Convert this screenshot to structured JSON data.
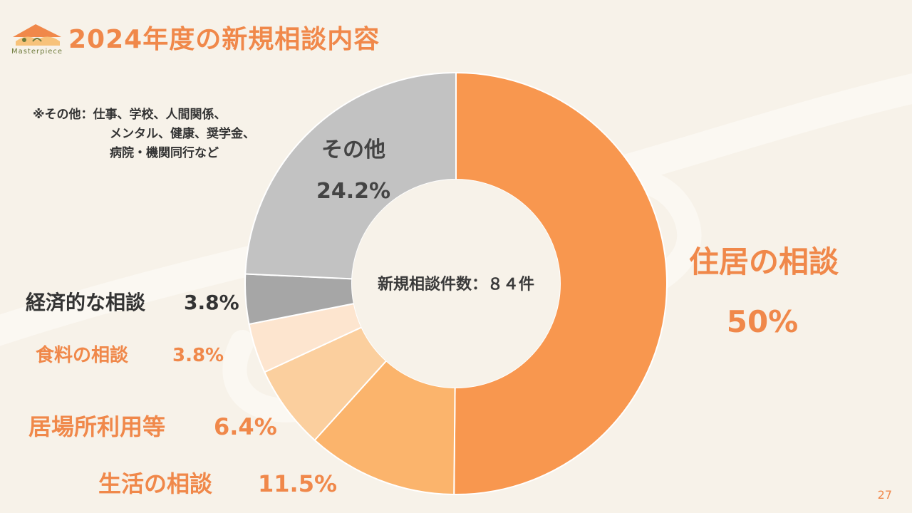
{
  "title": "2024年度の新規相談内容",
  "logo_text": "Masterpiece",
  "note": {
    "lines": [
      "※その他：仕事、学校、人間関係、",
      "メンタル、健康、奨学金、",
      "病院・機関同行など"
    ]
  },
  "page_number": "27",
  "chart_data": {
    "type": "pie",
    "donut": true,
    "center_label": "新規相談件数：８４件",
    "slices": [
      {
        "name": "住居の相談",
        "value": 50,
        "label": "50%",
        "color": "#f8974f"
      },
      {
        "name": "生活の相談",
        "value": 11.5,
        "label": "11.5%",
        "color": "#fbb46c"
      },
      {
        "name": "居場所利用等",
        "value": 6.4,
        "label": "6.4%",
        "color": "#fbcf9e"
      },
      {
        "name": "食料の相談",
        "value": 3.8,
        "label": "3.8%",
        "color": "#fde5cf"
      },
      {
        "name": "経済的な相談",
        "value": 3.8,
        "label": "3.8%",
        "color": "#a6a6a6"
      },
      {
        "name": "その他",
        "value": 24.2,
        "label": "24.2%",
        "color": "#c2c2c2"
      }
    ]
  }
}
